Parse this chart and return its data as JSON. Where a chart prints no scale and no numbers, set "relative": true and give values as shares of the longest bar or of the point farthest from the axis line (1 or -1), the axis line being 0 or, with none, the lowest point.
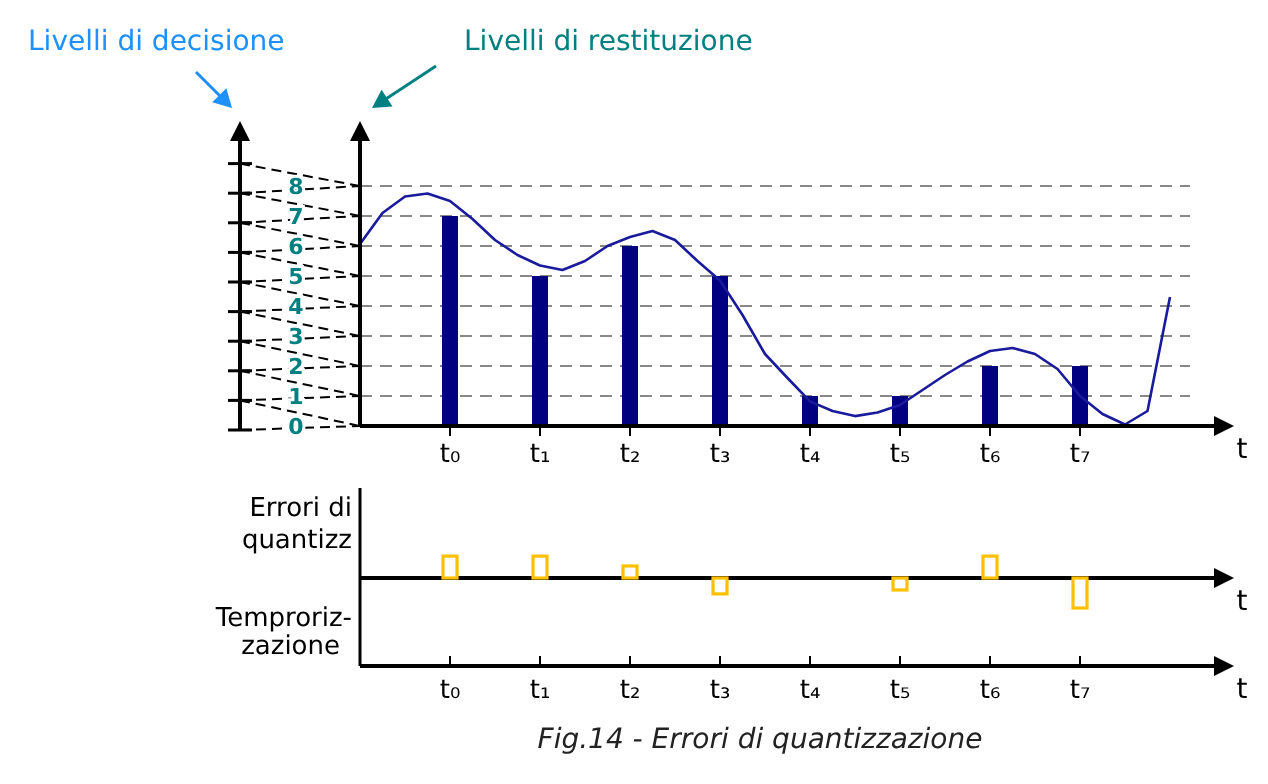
{
  "chart_data": [
    {
      "type": "bar",
      "annotations": [
        "Livelli di decisione",
        "Livelli di restituzione"
      ],
      "xlabel": "t",
      "categories": [
        null,
        null,
        null,
        null,
        "t₀",
        null,
        null,
        null,
        "t₁",
        null,
        null,
        null,
        "t₂",
        null,
        null,
        null,
        "t₃",
        null,
        null,
        null,
        "t₄",
        null,
        null,
        null,
        "t₅",
        null,
        null,
        null,
        "t₆",
        null,
        null,
        null,
        "t₇",
        null,
        null,
        null,
        null
      ],
      "series": [
        {
          "color": "#000080",
          "values": [
            null,
            null,
            null,
            null,
            7,
            null,
            null,
            null,
            5,
            null,
            null,
            null,
            6,
            null,
            null,
            null,
            5,
            null,
            null,
            null,
            1,
            null,
            null,
            null,
            1,
            null,
            null,
            null,
            2,
            null,
            null,
            null,
            2,
            null,
            null,
            null,
            null
          ]
        },
        {
          "type": "line",
          "color": "#1a1a9c",
          "values": [
            6.07,
            7.1,
            7.65,
            7.75,
            7.5,
            6.9,
            6.2,
            5.7,
            5.35,
            5.2,
            5.5,
            6.0,
            6.3,
            6.5,
            6.2,
            5.5,
            4.85,
            3.7,
            2.4,
            1.6,
            0.82,
            0.5,
            0.33,
            0.45,
            0.7,
            1.2,
            1.7,
            2.15,
            2.5,
            2.6,
            2.4,
            1.9,
            1.0,
            0.4,
            0.05,
            0.5,
            4.3
          ]
        }
      ],
      "ylim": [
        0,
        9.5
      ],
      "yticks": [
        0,
        1,
        2,
        3,
        4,
        5,
        6,
        7,
        8
      ],
      "grid": "y",
      "line_style": "solid",
      "marker": "none"
    },
    {
      "type": "bar",
      "relative": true,
      "ylabel": "Errori di quantizz",
      "xlabel": "t",
      "annotations": [
        "Temproriz-zazione",
        "Fig.14 - Errori di quantizzazione"
      ],
      "categories": [
        "t₀",
        "t₁",
        "t₂",
        "t₃",
        "t₄",
        "t₅",
        "t₆",
        "t₇"
      ],
      "series": [
        {
          "color": "#ffc000",
          "values": [
            0.73,
            0.73,
            0.4,
            -0.53,
            0,
            -0.4,
            0.73,
            -1
          ]
        }
      ]
    }
  ]
}
